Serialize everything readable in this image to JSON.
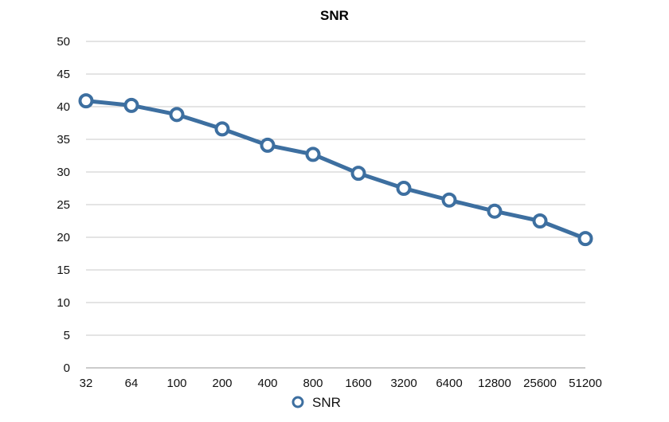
{
  "chart_data": {
    "type": "line",
    "title": "SNR",
    "xlabel": "",
    "ylabel": "",
    "categories": [
      "32",
      "64",
      "100",
      "200",
      "400",
      "800",
      "1600",
      "3200",
      "6400",
      "12800",
      "25600",
      "51200"
    ],
    "series": [
      {
        "name": "SNR",
        "values": [
          40.9,
          40.2,
          38.8,
          36.6,
          34.1,
          32.7,
          29.8,
          27.5,
          25.7,
          24.0,
          22.5,
          19.8
        ],
        "color": "#3d6fa0"
      }
    ],
    "ylim": [
      0,
      50
    ],
    "yticks": [
      "0",
      "5",
      "10",
      "15",
      "20",
      "25",
      "30",
      "35",
      "40",
      "45",
      "50"
    ],
    "grid": true,
    "legend": "bottom-center"
  }
}
